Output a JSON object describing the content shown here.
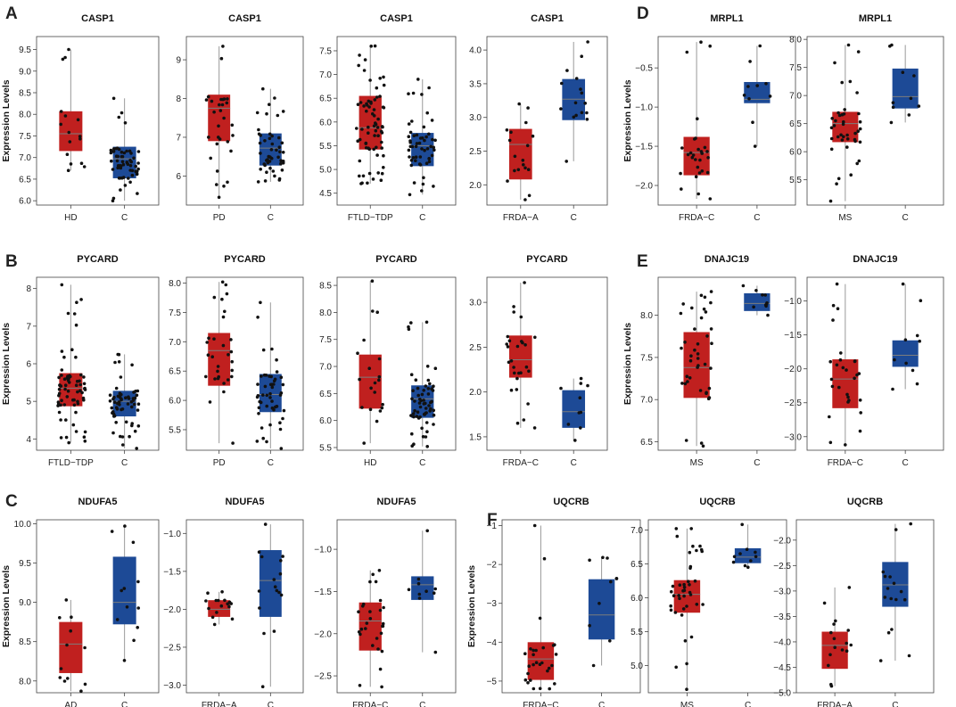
{
  "colors": {
    "disease": "#c0201f",
    "control": "#1d4a96",
    "median": "#7d7d7d"
  },
  "panels": [
    {
      "letter": "A",
      "name": "panel-a"
    },
    {
      "letter": "B",
      "name": "panel-b"
    },
    {
      "letter": "C",
      "name": "panel-c"
    },
    {
      "letter": "D",
      "name": "panel-d"
    },
    {
      "letter": "E",
      "name": "panel-e"
    },
    {
      "letter": "F",
      "name": "panel-f"
    }
  ],
  "chart_data": [
    {
      "panel": "A",
      "type": "box",
      "title": "CASP1",
      "ylabel": "Expression Levels",
      "ylim": [
        5.9,
        9.8
      ],
      "yticks": [
        "6.0",
        "6.5",
        "7.0",
        "7.5",
        "8.0",
        "8.5",
        "9.0",
        "9.5"
      ],
      "categories": [
        "HD",
        "C"
      ],
      "boxes": [
        {
          "q1": 7.15,
          "median": 7.55,
          "q3": 8.07,
          "min": 6.7,
          "max": 9.5,
          "n": 16
        },
        {
          "q1": 6.52,
          "median": 6.97,
          "q3": 7.25,
          "min": 6.0,
          "max": 8.37,
          "n": 60
        }
      ]
    },
    {
      "panel": "A",
      "type": "box",
      "title": "CASP1",
      "ylabel": "",
      "ylim": [
        5.25,
        9.6
      ],
      "yticks": [
        "6",
        "7",
        "8",
        "9"
      ],
      "categories": [
        "PD",
        "C"
      ],
      "boxes": [
        {
          "q1": 6.9,
          "median": 7.75,
          "q3": 8.1,
          "min": 5.45,
          "max": 9.35,
          "n": 30
        },
        {
          "q1": 6.27,
          "median": 6.72,
          "q3": 7.1,
          "min": 5.85,
          "max": 8.25,
          "n": 50
        }
      ]
    },
    {
      "panel": "A",
      "type": "box",
      "title": "CASP1",
      "ylabel": "",
      "ylim": [
        4.25,
        7.8
      ],
      "yticks": [
        "4.5",
        "5.0",
        "5.5",
        "6.0",
        "6.5",
        "7.0",
        "7.5"
      ],
      "categories": [
        "FTLD−TDP",
        "C"
      ],
      "boxes": [
        {
          "q1": 5.42,
          "median": 5.88,
          "q3": 6.55,
          "min": 4.7,
          "max": 7.6,
          "n": 70
        },
        {
          "q1": 5.07,
          "median": 5.5,
          "q3": 5.77,
          "min": 4.47,
          "max": 6.9,
          "n": 55
        }
      ]
    },
    {
      "panel": "A",
      "type": "box",
      "title": "CASP1",
      "ylabel": "",
      "ylim": [
        1.7,
        4.2
      ],
      "yticks": [
        "2.0",
        "2.5",
        "3.0",
        "3.5",
        "4.0"
      ],
      "categories": [
        "FRDA−A",
        "C"
      ],
      "boxes": [
        {
          "q1": 2.08,
          "median": 2.6,
          "q3": 2.83,
          "min": 1.78,
          "max": 3.2,
          "n": 18
        },
        {
          "q1": 2.96,
          "median": 3.27,
          "q3": 3.57,
          "min": 2.35,
          "max": 4.12,
          "n": 16
        }
      ]
    },
    {
      "panel": "D",
      "type": "box",
      "title": "MRPL1",
      "ylabel": "Expression Levels",
      "ylim": [
        -2.25,
        -0.1
      ],
      "yticks": [
        "−2.0",
        "−1.5",
        "−1.0",
        "−0.5"
      ],
      "categories": [
        "FRDA−C",
        "C"
      ],
      "boxes": [
        {
          "q1": -1.87,
          "median": -1.58,
          "q3": -1.38,
          "min": -2.17,
          "max": -0.17,
          "n": 28
        },
        {
          "q1": -0.95,
          "median": -0.9,
          "q3": -0.68,
          "min": -1.5,
          "max": -0.22,
          "n": 10
        }
      ]
    },
    {
      "panel": "D",
      "type": "box",
      "title": "MRPL1",
      "ylabel": "",
      "ylim": [
        5.05,
        8.05
      ],
      "yticks": [
        "5.5",
        "6.0",
        "6.5",
        "7.0",
        "7.5",
        "8.0"
      ],
      "categories": [
        "MS",
        "C"
      ],
      "boxes": [
        {
          "q1": 6.17,
          "median": 6.5,
          "q3": 6.71,
          "min": 5.12,
          "max": 7.9,
          "n": 40
        },
        {
          "q1": 6.77,
          "median": 6.98,
          "q3": 7.48,
          "min": 6.52,
          "max": 7.9,
          "n": 10
        }
      ]
    },
    {
      "panel": "B",
      "type": "box",
      "title": "PYCARD",
      "ylabel": "Expression Levels",
      "ylim": [
        3.7,
        8.3
      ],
      "yticks": [
        "4",
        "5",
        "6",
        "7",
        "8"
      ],
      "categories": [
        "FTLD−TDP",
        "C"
      ],
      "boxes": [
        {
          "q1": 4.87,
          "median": 5.35,
          "q3": 5.75,
          "min": 3.9,
          "max": 8.1,
          "n": 70
        },
        {
          "q1": 4.6,
          "median": 5.0,
          "q3": 5.28,
          "min": 3.75,
          "max": 6.25,
          "n": 60
        }
      ]
    },
    {
      "panel": "B",
      "type": "box",
      "title": "PYCARD",
      "ylabel": "",
      "ylim": [
        5.15,
        8.1
      ],
      "yticks": [
        "5.5",
        "6.0",
        "6.5",
        "7.0",
        "7.5",
        "8.0"
      ],
      "categories": [
        "PD",
        "C"
      ],
      "boxes": [
        {
          "q1": 6.25,
          "median": 6.85,
          "q3": 7.15,
          "min": 5.27,
          "max": 8.02,
          "n": 30
        },
        {
          "q1": 5.8,
          "median": 6.1,
          "q3": 6.45,
          "min": 5.18,
          "max": 7.67,
          "n": 50
        }
      ]
    },
    {
      "panel": "B",
      "type": "box",
      "title": "PYCARD",
      "ylabel": "",
      "ylim": [
        5.45,
        8.65
      ],
      "yticks": [
        "5.5",
        "6.0",
        "6.5",
        "7.0",
        "7.5",
        "8.0",
        "8.5"
      ],
      "categories": [
        "HD",
        "C"
      ],
      "boxes": [
        {
          "q1": 6.22,
          "median": 6.8,
          "q3": 7.22,
          "min": 5.58,
          "max": 8.58,
          "n": 20
        },
        {
          "q1": 6.05,
          "median": 6.4,
          "q3": 6.65,
          "min": 5.52,
          "max": 7.82,
          "n": 60
        }
      ]
    },
    {
      "panel": "B",
      "type": "box",
      "title": "PYCARD",
      "ylabel": "",
      "ylim": [
        1.35,
        3.28
      ],
      "yticks": [
        "1.5",
        "2.0",
        "2.5",
        "3.0"
      ],
      "categories": [
        "FRDA−C",
        "C"
      ],
      "boxes": [
        {
          "q1": 2.16,
          "median": 2.36,
          "q3": 2.63,
          "min": 1.6,
          "max": 3.22,
          "n": 28
        },
        {
          "q1": 1.6,
          "median": 1.78,
          "q3": 2.02,
          "min": 1.46,
          "max": 2.15,
          "n": 10
        }
      ]
    },
    {
      "panel": "E",
      "type": "box",
      "title": "DNAJC19",
      "ylabel": "Expression Levels",
      "ylim": [
        6.4,
        8.45
      ],
      "yticks": [
        "6.5",
        "7.0",
        "7.5",
        "8.0"
      ],
      "categories": [
        "MS",
        "C"
      ],
      "boxes": [
        {
          "q1": 7.02,
          "median": 7.38,
          "q3": 7.8,
          "min": 6.45,
          "max": 8.28,
          "n": 40
        },
        {
          "q1": 8.05,
          "median": 8.14,
          "q3": 8.26,
          "min": 8.0,
          "max": 8.35,
          "n": 10
        }
      ]
    },
    {
      "panel": "E",
      "type": "box",
      "title": "DNAJC19",
      "ylabel": "",
      "ylim": [
        -3.2,
        -0.65
      ],
      "yticks": [
        "−3.0",
        "−2.5",
        "−2.0",
        "−1.5",
        "−1.0"
      ],
      "categories": [
        "FRDA−C",
        "C"
      ],
      "boxes": [
        {
          "q1": -2.58,
          "median": -2.15,
          "q3": -1.86,
          "min": -3.12,
          "max": -0.75,
          "n": 28
        },
        {
          "q1": -1.97,
          "median": -1.8,
          "q3": -1.58,
          "min": -2.3,
          "max": -0.75,
          "n": 10
        }
      ]
    },
    {
      "panel": "C",
      "type": "box",
      "title": "NDUFA5",
      "ylabel": "Expression Levels",
      "ylim": [
        7.85,
        10.05
      ],
      "yticks": [
        "8.0",
        "8.5",
        "9.0",
        "9.5",
        "10.0"
      ],
      "categories": [
        "AD",
        "C"
      ],
      "boxes": [
        {
          "q1": 8.1,
          "median": 8.47,
          "q3": 8.75,
          "min": 7.87,
          "max": 9.03,
          "n": 12
        },
        {
          "q1": 8.72,
          "median": 9.0,
          "q3": 9.58,
          "min": 8.26,
          "max": 9.97,
          "n": 12
        }
      ]
    },
    {
      "panel": "C",
      "type": "box",
      "title": "NDUFA5",
      "ylabel": "",
      "ylim": [
        -3.1,
        -0.82
      ],
      "yticks": [
        "−3.0",
        "−2.5",
        "−2.0",
        "−1.5",
        "−1.0"
      ],
      "categories": [
        "FRDA−A",
        "C"
      ],
      "boxes": [
        {
          "q1": -2.1,
          "median": -2.0,
          "q3": -1.88,
          "min": -2.2,
          "max": -1.77,
          "n": 16
        },
        {
          "q1": -2.1,
          "median": -1.62,
          "q3": -1.22,
          "min": -3.02,
          "max": -0.88,
          "n": 16
        }
      ]
    },
    {
      "panel": "C",
      "type": "box",
      "title": "NDUFA5",
      "ylabel": "",
      "ylim": [
        -2.7,
        -0.65
      ],
      "yticks": [
        "−2.5",
        "−2.0",
        "−1.5",
        "−1.0"
      ],
      "categories": [
        "FRDA−C",
        "C"
      ],
      "boxes": [
        {
          "q1": -2.2,
          "median": -1.85,
          "q3": -1.63,
          "min": -2.63,
          "max": -1.25,
          "n": 28
        },
        {
          "q1": -1.6,
          "median": -1.42,
          "q3": -1.32,
          "min": -2.22,
          "max": -0.78,
          "n": 10
        }
      ]
    },
    {
      "panel": "F",
      "type": "box",
      "title": "UQCRB",
      "ylabel": "Expression Levels",
      "ylim": [
        -5.3,
        -0.85
      ],
      "yticks": [
        "−5",
        "−4",
        "−3",
        "−2",
        "−1"
      ],
      "categories": [
        "FRDA−C",
        "C"
      ],
      "boxes": [
        {
          "q1": -4.97,
          "median": -4.43,
          "q3": -4.0,
          "min": -5.2,
          "max": -1.0,
          "n": 28
        },
        {
          "q1": -3.93,
          "median": -3.3,
          "q3": -2.38,
          "min": -4.6,
          "max": -1.82,
          "n": 10
        }
      ]
    },
    {
      "panel": "F",
      "type": "box",
      "title": "UQCRB",
      "ylabel": "",
      "ylim": [
        4.6,
        7.15
      ],
      "yticks": [
        "5.0",
        "5.5",
        "6.0",
        "6.5",
        "7.0"
      ],
      "categories": [
        "MS",
        "C"
      ],
      "boxes": [
        {
          "q1": 5.78,
          "median": 6.05,
          "q3": 6.26,
          "min": 4.65,
          "max": 7.02,
          "n": 40
        },
        {
          "q1": 6.51,
          "median": 6.6,
          "q3": 6.73,
          "min": 6.45,
          "max": 7.08,
          "n": 10
        }
      ]
    },
    {
      "panel": "F",
      "type": "box",
      "title": "UQCRB",
      "ylabel": "",
      "ylim": [
        -5.0,
        -1.6
      ],
      "yticks": [
        "−5.0",
        "−4.5",
        "−4.0",
        "−3.5",
        "−3.0",
        "−2.5",
        "−2.0"
      ],
      "categories": [
        "FRDA−A",
        "C"
      ],
      "boxes": [
        {
          "q1": -4.53,
          "median": -4.07,
          "q3": -3.8,
          "min": -4.87,
          "max": -2.93,
          "n": 16
        },
        {
          "q1": -3.31,
          "median": -2.88,
          "q3": -2.43,
          "min": -4.37,
          "max": -1.68,
          "n": 16
        }
      ]
    }
  ]
}
